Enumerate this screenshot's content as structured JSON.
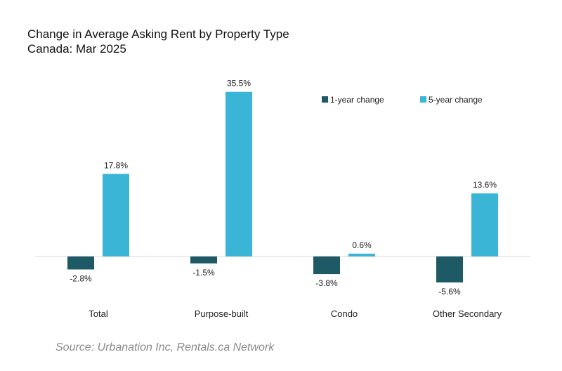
{
  "chart_data": {
    "type": "bar",
    "title": "Change in Average Asking Rent by Property Type",
    "subtitle": "Canada: Mar 2025",
    "categories": [
      "Total",
      "Purpose-built",
      "Condo",
      "Other Secondary"
    ],
    "series": [
      {
        "name": "1-year change",
        "color": "#1d5a66",
        "values": [
          -2.8,
          -1.5,
          -3.8,
          -5.6
        ],
        "labels": [
          "-2.8%",
          "-1.5%",
          "-3.8%",
          "-5.6%"
        ]
      },
      {
        "name": "5-year change",
        "color": "#3ab5d6",
        "values": [
          17.8,
          35.5,
          0.6,
          13.6
        ],
        "labels": [
          "17.8%",
          "35.5%",
          "0.6%",
          "13.6%"
        ]
      }
    ],
    "ylim": [
      -8,
      38
    ],
    "grid": false,
    "legend": "top-right",
    "source": "Source: Urbanation Inc, Rentals.ca Network"
  }
}
